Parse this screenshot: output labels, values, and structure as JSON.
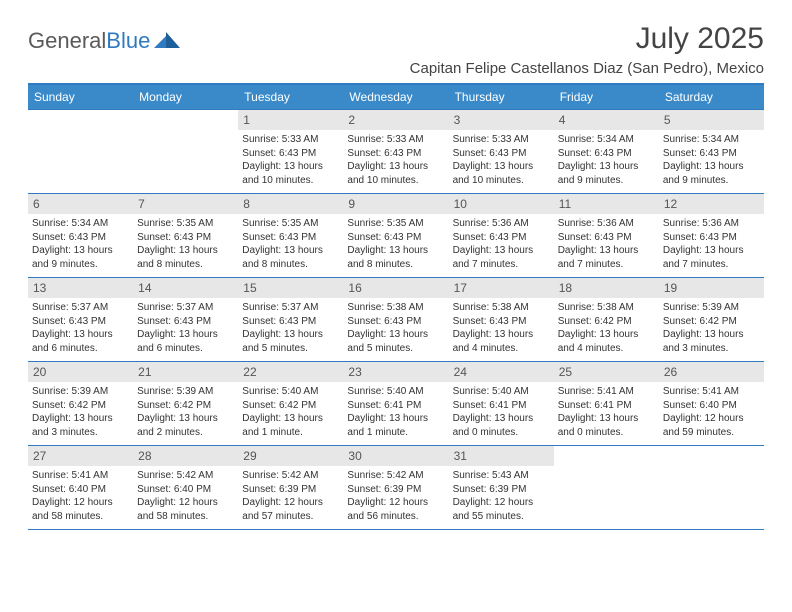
{
  "brand": {
    "part1": "General",
    "part2": "Blue"
  },
  "title": "July 2025",
  "location": "Capitan Felipe Castellanos Diaz (San Pedro), Mexico",
  "header_bg": "#3a8ac9",
  "border_color": "#2f7ac0",
  "daynum_bg": "#e7e7e7",
  "days_of_week": [
    "Sunday",
    "Monday",
    "Tuesday",
    "Wednesday",
    "Thursday",
    "Friday",
    "Saturday"
  ],
  "weeks": [
    [
      null,
      null,
      {
        "n": "1",
        "sr": "5:33 AM",
        "ss": "6:43 PM",
        "dl": "13 hours and 10 minutes."
      },
      {
        "n": "2",
        "sr": "5:33 AM",
        "ss": "6:43 PM",
        "dl": "13 hours and 10 minutes."
      },
      {
        "n": "3",
        "sr": "5:33 AM",
        "ss": "6:43 PM",
        "dl": "13 hours and 10 minutes."
      },
      {
        "n": "4",
        "sr": "5:34 AM",
        "ss": "6:43 PM",
        "dl": "13 hours and 9 minutes."
      },
      {
        "n": "5",
        "sr": "5:34 AM",
        "ss": "6:43 PM",
        "dl": "13 hours and 9 minutes."
      }
    ],
    [
      {
        "n": "6",
        "sr": "5:34 AM",
        "ss": "6:43 PM",
        "dl": "13 hours and 9 minutes."
      },
      {
        "n": "7",
        "sr": "5:35 AM",
        "ss": "6:43 PM",
        "dl": "13 hours and 8 minutes."
      },
      {
        "n": "8",
        "sr": "5:35 AM",
        "ss": "6:43 PM",
        "dl": "13 hours and 8 minutes."
      },
      {
        "n": "9",
        "sr": "5:35 AM",
        "ss": "6:43 PM",
        "dl": "13 hours and 8 minutes."
      },
      {
        "n": "10",
        "sr": "5:36 AM",
        "ss": "6:43 PM",
        "dl": "13 hours and 7 minutes."
      },
      {
        "n": "11",
        "sr": "5:36 AM",
        "ss": "6:43 PM",
        "dl": "13 hours and 7 minutes."
      },
      {
        "n": "12",
        "sr": "5:36 AM",
        "ss": "6:43 PM",
        "dl": "13 hours and 7 minutes."
      }
    ],
    [
      {
        "n": "13",
        "sr": "5:37 AM",
        "ss": "6:43 PM",
        "dl": "13 hours and 6 minutes."
      },
      {
        "n": "14",
        "sr": "5:37 AM",
        "ss": "6:43 PM",
        "dl": "13 hours and 6 minutes."
      },
      {
        "n": "15",
        "sr": "5:37 AM",
        "ss": "6:43 PM",
        "dl": "13 hours and 5 minutes."
      },
      {
        "n": "16",
        "sr": "5:38 AM",
        "ss": "6:43 PM",
        "dl": "13 hours and 5 minutes."
      },
      {
        "n": "17",
        "sr": "5:38 AM",
        "ss": "6:43 PM",
        "dl": "13 hours and 4 minutes."
      },
      {
        "n": "18",
        "sr": "5:38 AM",
        "ss": "6:42 PM",
        "dl": "13 hours and 4 minutes."
      },
      {
        "n": "19",
        "sr": "5:39 AM",
        "ss": "6:42 PM",
        "dl": "13 hours and 3 minutes."
      }
    ],
    [
      {
        "n": "20",
        "sr": "5:39 AM",
        "ss": "6:42 PM",
        "dl": "13 hours and 3 minutes."
      },
      {
        "n": "21",
        "sr": "5:39 AM",
        "ss": "6:42 PM",
        "dl": "13 hours and 2 minutes."
      },
      {
        "n": "22",
        "sr": "5:40 AM",
        "ss": "6:42 PM",
        "dl": "13 hours and 1 minute."
      },
      {
        "n": "23",
        "sr": "5:40 AM",
        "ss": "6:41 PM",
        "dl": "13 hours and 1 minute."
      },
      {
        "n": "24",
        "sr": "5:40 AM",
        "ss": "6:41 PM",
        "dl": "13 hours and 0 minutes."
      },
      {
        "n": "25",
        "sr": "5:41 AM",
        "ss": "6:41 PM",
        "dl": "13 hours and 0 minutes."
      },
      {
        "n": "26",
        "sr": "5:41 AM",
        "ss": "6:40 PM",
        "dl": "12 hours and 59 minutes."
      }
    ],
    [
      {
        "n": "27",
        "sr": "5:41 AM",
        "ss": "6:40 PM",
        "dl": "12 hours and 58 minutes."
      },
      {
        "n": "28",
        "sr": "5:42 AM",
        "ss": "6:40 PM",
        "dl": "12 hours and 58 minutes."
      },
      {
        "n": "29",
        "sr": "5:42 AM",
        "ss": "6:39 PM",
        "dl": "12 hours and 57 minutes."
      },
      {
        "n": "30",
        "sr": "5:42 AM",
        "ss": "6:39 PM",
        "dl": "12 hours and 56 minutes."
      },
      {
        "n": "31",
        "sr": "5:43 AM",
        "ss": "6:39 PM",
        "dl": "12 hours and 55 minutes."
      },
      null,
      null
    ]
  ],
  "labels": {
    "sunrise": "Sunrise:",
    "sunset": "Sunset:",
    "daylight": "Daylight:"
  }
}
